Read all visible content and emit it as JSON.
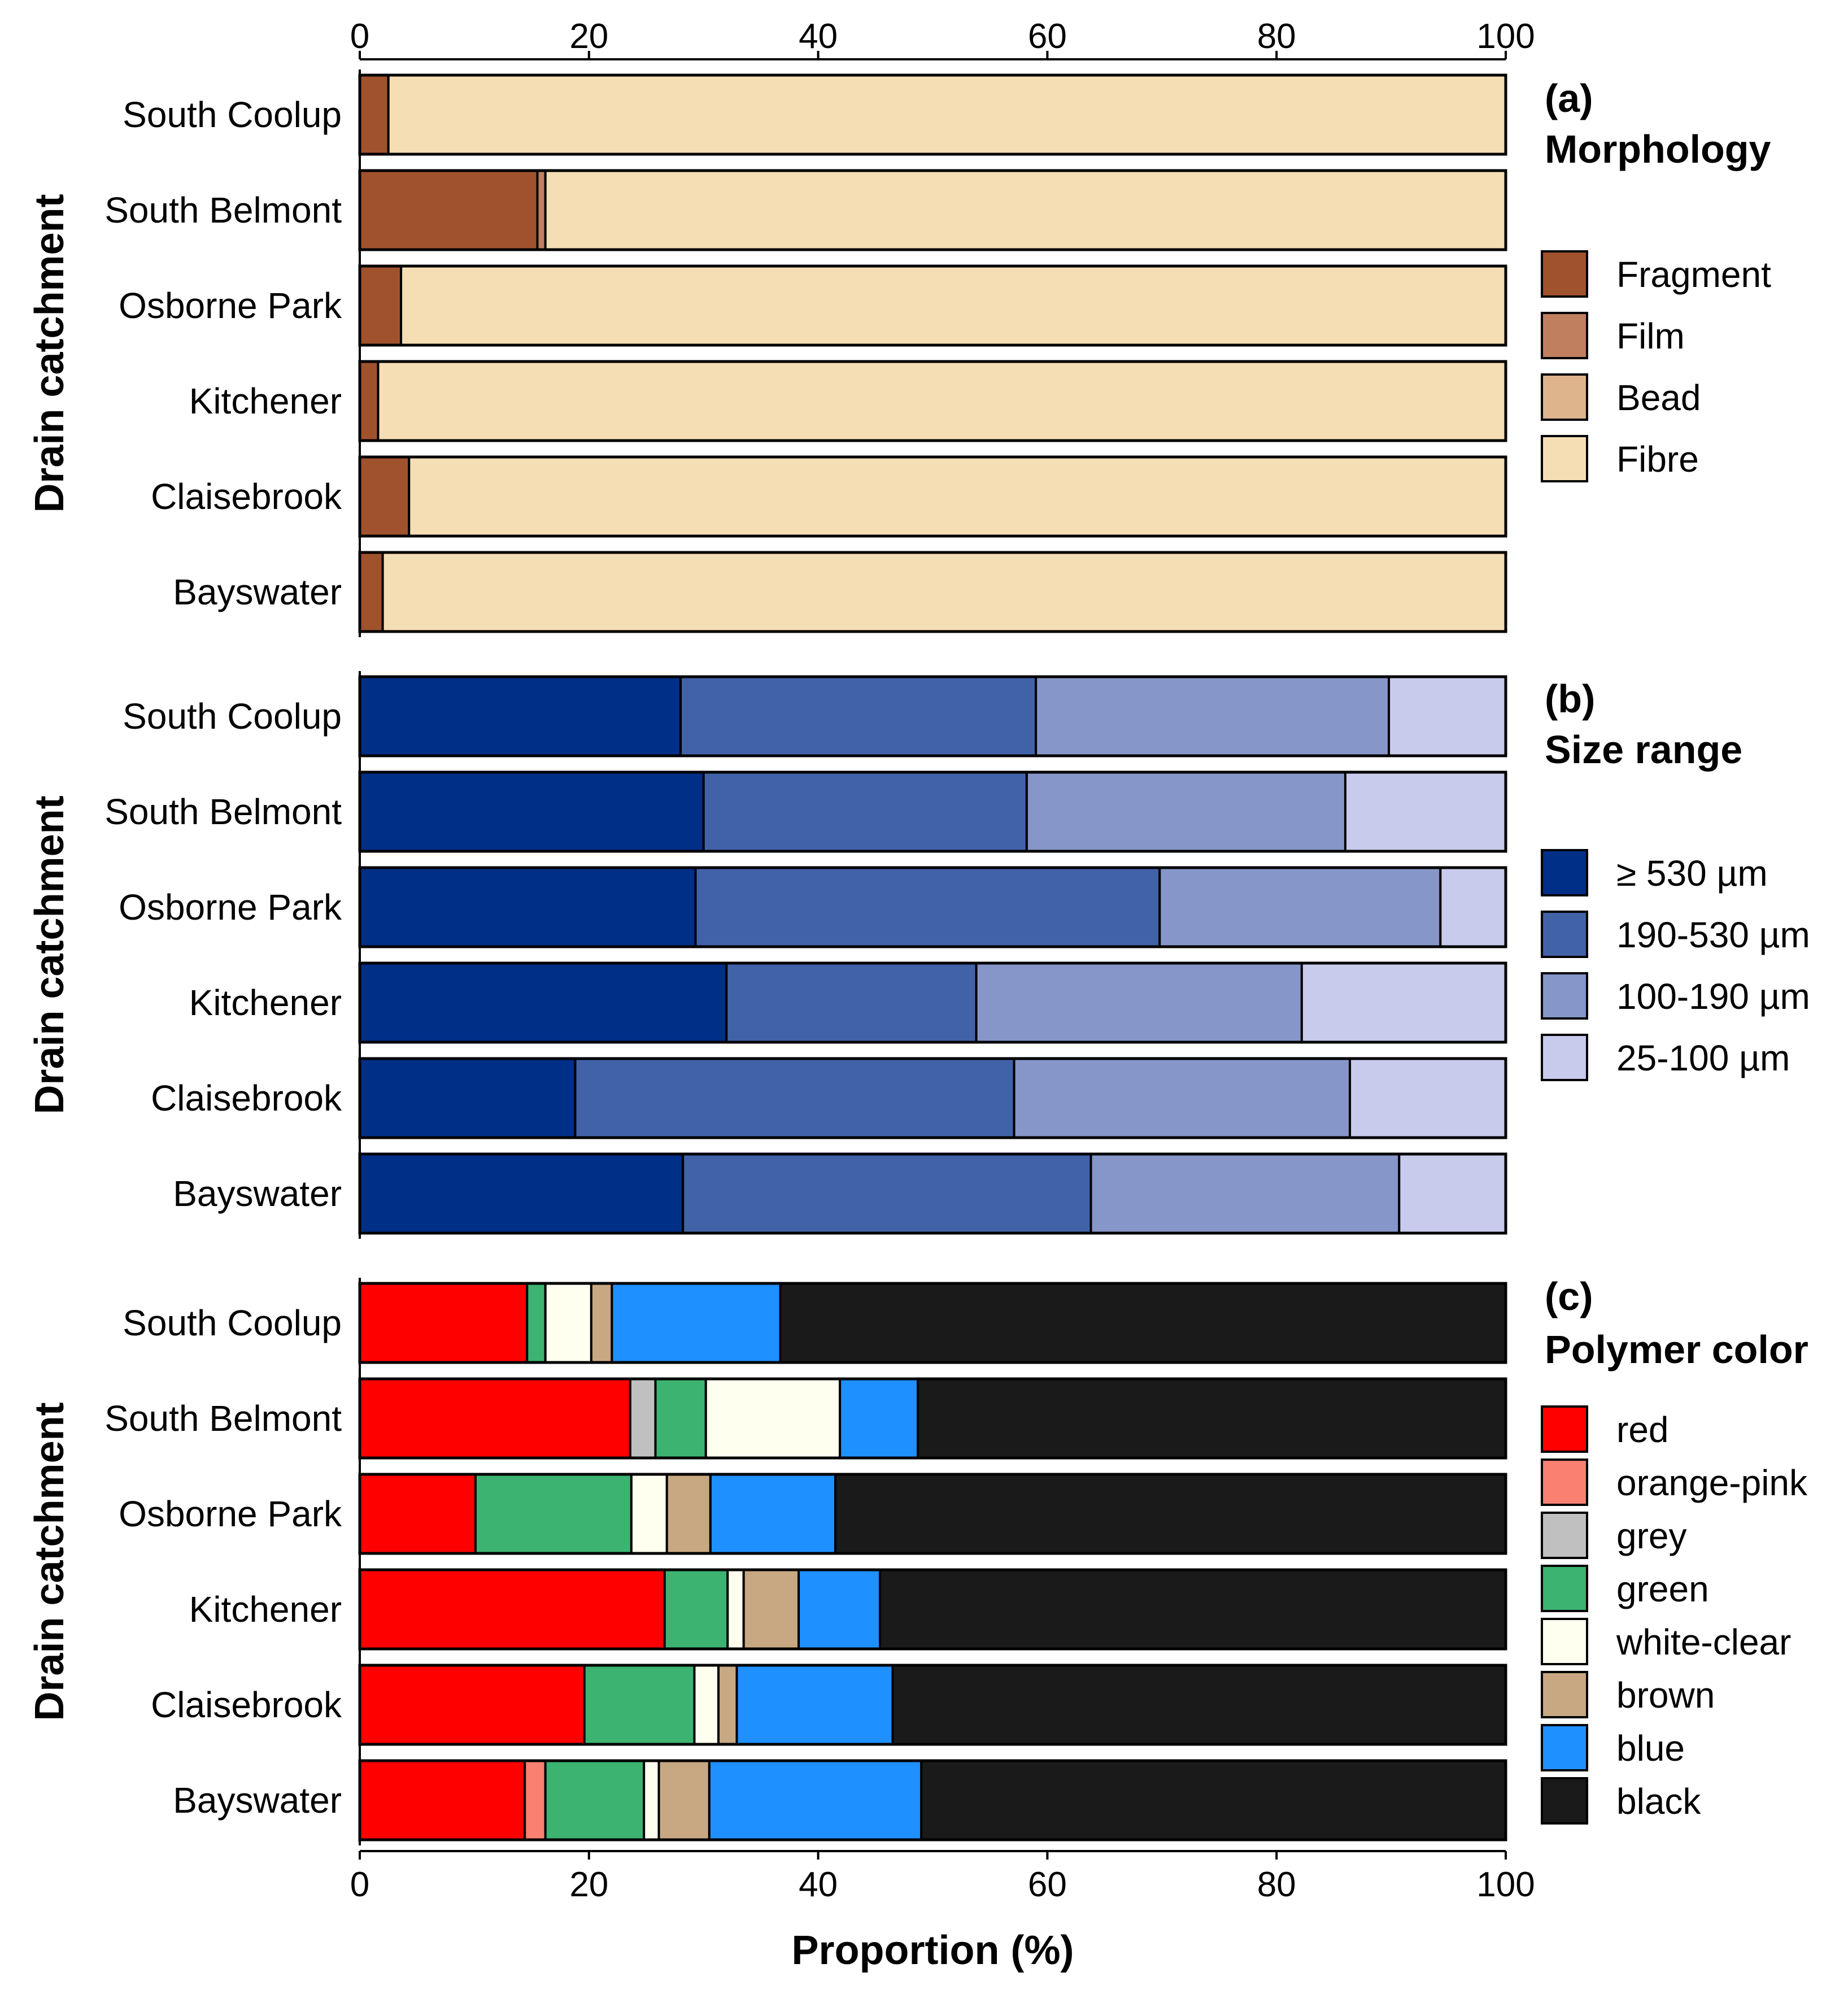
{
  "chart_data": [
    {
      "type": "bar",
      "orientation": "horizontal",
      "stacked": true,
      "panel_letter": "(a)",
      "title": "Morphology",
      "ylabel": "Drain catchment",
      "categories": [
        "South Coolup",
        "South Belmont",
        "Osborne Park",
        "Kitchener",
        "Claisebrook",
        "Bayswater"
      ],
      "series": [
        {
          "name": "Fragment",
          "color": "#A0522D",
          "values": [
            2.5,
            15.5,
            3.6,
            1.6,
            4.3,
            2.0
          ]
        },
        {
          "name": "Film",
          "color": "#C08060",
          "values": [
            0,
            0.7,
            0,
            0,
            0,
            0
          ]
        },
        {
          "name": "Bead",
          "color": "#DEB48C",
          "values": [
            0,
            0,
            0,
            0,
            0,
            0
          ]
        },
        {
          "name": "Fibre",
          "color": "#F5DEB3",
          "values": [
            97.5,
            83.8,
            96.4,
            98.4,
            95.7,
            98.0
          ]
        }
      ],
      "xlim": [
        0,
        100
      ]
    },
    {
      "type": "bar",
      "orientation": "horizontal",
      "stacked": true,
      "panel_letter": "(b)",
      "title": "Size range",
      "ylabel": "Drain catchment",
      "categories": [
        "South Coolup",
        "South Belmont",
        "Osborne Park",
        "Kitchener",
        "Claisebrook",
        "Bayswater"
      ],
      "series": [
        {
          "name": "≥ 530 µm",
          "color": "#002F87",
          "values": [
            28.0,
            30.0,
            29.3,
            32.0,
            18.8,
            28.2
          ]
        },
        {
          "name": "190-530 µm",
          "color": "#4262A8",
          "values": [
            31.0,
            28.2,
            40.5,
            21.8,
            38.3,
            35.6
          ]
        },
        {
          "name": "100-190 µm",
          "color": "#8696C8",
          "values": [
            30.8,
            27.8,
            24.5,
            28.4,
            29.3,
            26.9
          ]
        },
        {
          "name": "25-100 µm",
          "color": "#C8CBEB",
          "values": [
            10.2,
            14.0,
            5.7,
            17.8,
            13.6,
            9.3
          ]
        }
      ],
      "xlim": [
        0,
        100
      ]
    },
    {
      "type": "bar",
      "orientation": "horizontal",
      "stacked": true,
      "panel_letter": "(c)",
      "title": "Polymer color",
      "ylabel": "Drain catchment",
      "xlabel": "Proportion (%)",
      "categories": [
        "South Coolup",
        "South Belmont",
        "Osborne Park",
        "Kitchener",
        "Claisebrook",
        "Bayswater"
      ],
      "series": [
        {
          "name": "red",
          "color": "#FF0000",
          "values": [
            14.6,
            23.6,
            10.1,
            26.6,
            19.6,
            14.4
          ]
        },
        {
          "name": "orange-pink",
          "color": "#FA8072",
          "values": [
            0,
            0,
            0,
            0,
            0,
            1.8
          ]
        },
        {
          "name": "grey",
          "color": "#C0C0C0",
          "values": [
            0,
            2.2,
            0,
            0,
            0,
            0
          ]
        },
        {
          "name": "green",
          "color": "#3CB371",
          "values": [
            1.6,
            4.4,
            13.6,
            5.5,
            9.6,
            8.6
          ]
        },
        {
          "name": "white-clear",
          "color": "#FFFFF0",
          "values": [
            4.0,
            11.7,
            3.1,
            1.4,
            2.1,
            1.3
          ]
        },
        {
          "name": "brown",
          "color": "#C8A882",
          "values": [
            1.8,
            0,
            3.8,
            4.8,
            1.6,
            4.4
          ]
        },
        {
          "name": "blue",
          "color": "#1E90FF",
          "values": [
            14.7,
            6.8,
            10.9,
            7.1,
            13.6,
            18.5
          ]
        },
        {
          "name": "black",
          "color": "#1A1A1A",
          "values": [
            63.3,
            51.3,
            58.5,
            54.6,
            53.5,
            51.0
          ]
        }
      ],
      "xlim": [
        0,
        100
      ]
    }
  ],
  "axis": {
    "ticks": [
      "0",
      "20",
      "40",
      "60",
      "80",
      "100"
    ],
    "tick_values": [
      0,
      20,
      40,
      60,
      80,
      100
    ]
  }
}
